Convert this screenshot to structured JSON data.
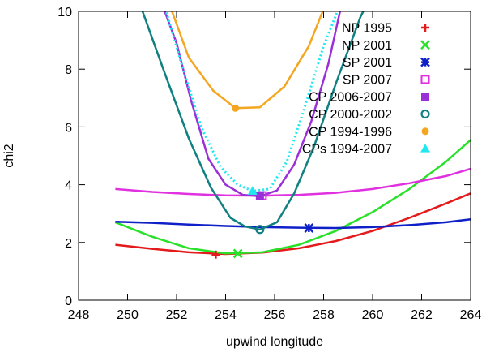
{
  "chart_data": {
    "type": "line",
    "title": "",
    "xlabel": "upwind longitude",
    "ylabel": "chi2",
    "xlim": [
      248,
      264
    ],
    "ylim": [
      0,
      10
    ],
    "xticks": [
      "248",
      "250",
      "252",
      "254",
      "256",
      "258",
      "260",
      "262",
      "264"
    ],
    "yticks": [
      "0",
      "2",
      "4",
      "6",
      "8",
      "10"
    ],
    "legend_position": "top-right",
    "series": [
      {
        "name": "NP 1995",
        "color": "#e41a1c",
        "marker": "plus",
        "best": [
          253.6,
          1.58
        ],
        "x": [
          249.5,
          251,
          252.5,
          254,
          255.5,
          257,
          258.5,
          260,
          261.5,
          263,
          264
        ],
        "y": [
          1.92,
          1.78,
          1.66,
          1.6,
          1.65,
          1.8,
          2.05,
          2.4,
          2.85,
          3.35,
          3.7
        ]
      },
      {
        "name": "NP 2001",
        "color": "#2ae12a",
        "marker": "cross",
        "best": [
          254.5,
          1.62
        ],
        "x": [
          249.5,
          251,
          252.5,
          254,
          255.5,
          257,
          258.5,
          260,
          261.5,
          263,
          264
        ],
        "y": [
          2.7,
          2.2,
          1.8,
          1.62,
          1.66,
          1.92,
          2.4,
          3.05,
          3.85,
          4.8,
          5.55
        ]
      },
      {
        "name": "SP 2001",
        "color": "#1020c8",
        "marker": "star",
        "best": [
          257.4,
          2.5
        ],
        "x": [
          249.5,
          251,
          252.5,
          254,
          255.5,
          257,
          258.5,
          260,
          261.5,
          263,
          264
        ],
        "y": [
          2.72,
          2.68,
          2.62,
          2.57,
          2.53,
          2.51,
          2.5,
          2.53,
          2.6,
          2.7,
          2.8
        ]
      },
      {
        "name": "SP 2007",
        "color": "#e030e0",
        "marker": "open-square",
        "best": [
          255.5,
          3.62
        ],
        "x": [
          249.5,
          251,
          252.5,
          254,
          255.5,
          257,
          258.5,
          260,
          261.5,
          263,
          264
        ],
        "y": [
          3.85,
          3.75,
          3.68,
          3.63,
          3.62,
          3.65,
          3.72,
          3.85,
          4.05,
          4.3,
          4.55
        ]
      },
      {
        "name": "CP 2006-2007",
        "color": "#9a30d8",
        "marker": "filled-square",
        "best": [
          255.4,
          3.6
        ],
        "x": [
          251.3,
          252,
          252.6,
          253.3,
          254,
          254.7,
          255.4,
          256.1,
          256.8,
          257.5,
          258.2,
          258.8
        ],
        "y": [
          10.5,
          8.9,
          6.9,
          4.9,
          4.0,
          3.65,
          3.6,
          3.8,
          4.7,
          6.2,
          8.2,
          10.5
        ]
      },
      {
        "name": "CP 2000-2002",
        "color": "#108080",
        "marker": "open-circle",
        "best": [
          255.4,
          2.45
        ],
        "x": [
          250.4,
          251.5,
          252.5,
          253.4,
          254.2,
          254.8,
          255.4,
          256.1,
          256.8,
          257.6,
          258.5,
          259.5,
          260.5
        ],
        "y": [
          10.5,
          7.9,
          5.6,
          3.9,
          2.85,
          2.55,
          2.45,
          2.7,
          3.7,
          5.3,
          7.5,
          9.8,
          11.5
        ]
      },
      {
        "name": "CP 1994-1996",
        "color": "#f4a620",
        "marker": "filled-circle",
        "best": [
          254.4,
          6.65
        ],
        "x": [
          251.6,
          252.5,
          253.5,
          254.4,
          255.4,
          256.4,
          257.4,
          258.2
        ],
        "y": [
          10.5,
          8.4,
          7.25,
          6.65,
          6.68,
          7.4,
          8.8,
          10.5
        ]
      },
      {
        "name": "CPs 1994-2007",
        "color": "#20e8f0",
        "marker": "filled-triangle",
        "dashed": true,
        "best": [
          255.1,
          3.78
        ],
        "x": [
          251.4,
          252.2,
          253,
          253.8,
          254.5,
          255.1,
          255.8,
          256.5,
          257.2,
          258,
          258.8
        ],
        "y": [
          10.5,
          8.2,
          6.0,
          4.6,
          4.0,
          3.78,
          3.85,
          4.8,
          6.6,
          8.8,
          10.5
        ]
      }
    ]
  }
}
